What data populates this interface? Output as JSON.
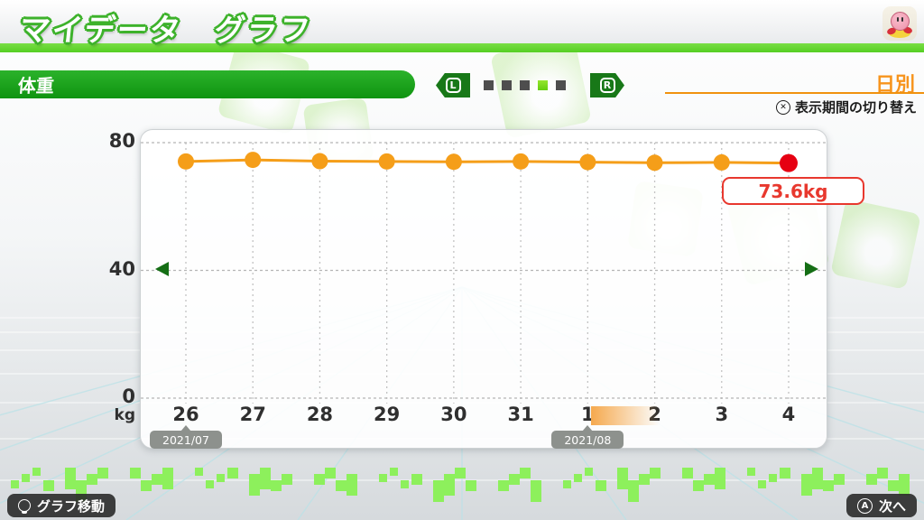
{
  "header": {
    "title": "マイデータ　グラフ",
    "avatar": "kirby-avatar"
  },
  "toolbar": {
    "metric_label": "体重",
    "l_label": "L",
    "r_label": "R",
    "page_dots": {
      "count": 5,
      "active_index": 3
    },
    "period_label": "日別",
    "period_hint_button": "✕",
    "period_hint": "表示期間の切り替え"
  },
  "chart_data": {
    "type": "line",
    "title": "体重",
    "x": [
      "26",
      "27",
      "28",
      "29",
      "30",
      "31",
      "1",
      "2",
      "3",
      "4"
    ],
    "values": [
      74.1,
      74.6,
      74.2,
      74.1,
      74.0,
      74.1,
      73.9,
      73.7,
      73.8,
      73.6
    ],
    "unit": "kg",
    "ylabel": "kg",
    "yticks": [
      80,
      40,
      0
    ],
    "ylim": [
      0,
      80
    ],
    "grid": true,
    "highlight_index": 9,
    "highlight_value_label": "73.6kg",
    "month_markers": [
      {
        "index": 0,
        "label": "2021/07"
      },
      {
        "index": 6,
        "label": "2021/08"
      }
    ],
    "month_highlight_index": 6,
    "line_color": "#f59e19",
    "dot_color": "#f59e19",
    "last_dot_color": "#e60012",
    "callout_color": "#e8382e",
    "period_color": "#f7941d",
    "accent_green": "#1fa41f"
  },
  "footer": {
    "left_action": "グラフ移動",
    "left_icon": "left-stick",
    "right_button": "A",
    "right_action": "次へ"
  }
}
